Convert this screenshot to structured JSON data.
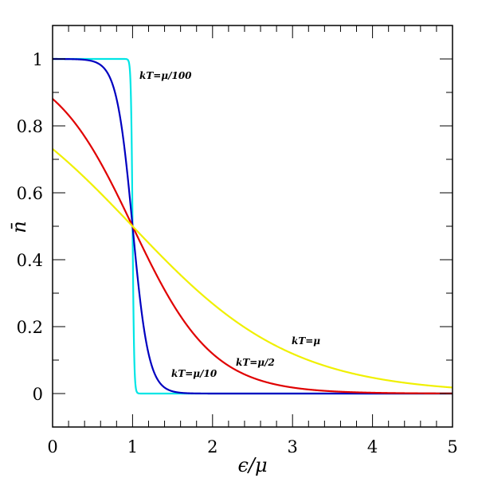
{
  "chart_data": {
    "type": "line",
    "title": "",
    "xlabel": "ϵ/μ",
    "ylabel": "n̄",
    "xlim": [
      0,
      5
    ],
    "ylim": [
      -0.1,
      1.1
    ],
    "xticks": [
      "0",
      "1",
      "2",
      "3",
      "4",
      "5"
    ],
    "yticks": [
      "0",
      "0.2",
      "0.4",
      "0.6",
      "0.8",
      "1"
    ],
    "grid": false,
    "function": "n = 1/(exp((x-1)/t)+1)",
    "series": [
      {
        "label": "kT=μ/100",
        "kT_over_mu": 0.01,
        "color": "#00e5e5"
      },
      {
        "label": "kT=μ/10",
        "kT_over_mu": 0.1,
        "color": "#0000c0"
      },
      {
        "label": "kT=μ/2",
        "kT_over_mu": 0.5,
        "color": "#e00000"
      },
      {
        "label": "kT=μ",
        "kT_over_mu": 1,
        "color": "#f0f000"
      }
    ]
  }
}
